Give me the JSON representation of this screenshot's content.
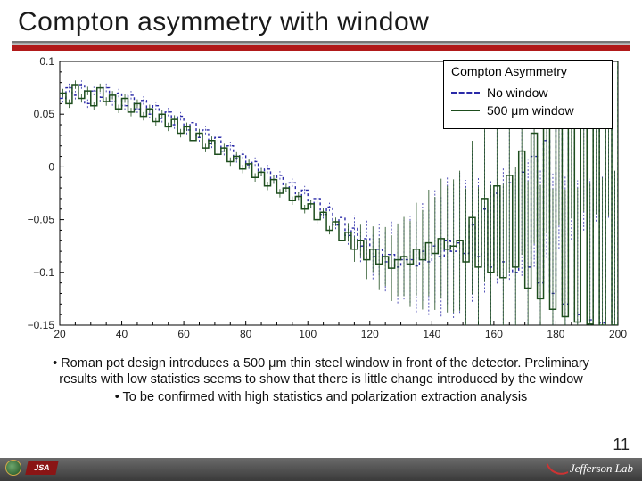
{
  "slide": {
    "title": "Compton asymmetry with window",
    "page_number": "11"
  },
  "chart": {
    "type": "line",
    "background_color": "#ffffff",
    "plot_border_color": "#000000",
    "grid": false,
    "xlim": [
      20,
      200
    ],
    "ylim": [
      -0.15,
      0.1
    ],
    "xtick_step": 20,
    "xtick_labels": [
      "20",
      "40",
      "60",
      "80",
      "100",
      "120",
      "140",
      "160",
      "180",
      "200"
    ],
    "ytick_step": 0.05,
    "ytick_labels": [
      "-0.15",
      "-0.1",
      "-0.05",
      "0",
      "0.05",
      "0.1"
    ],
    "tick_fontsize": 12,
    "legend": {
      "title": "Compton Asymmetry",
      "items": [
        {
          "label": "No window",
          "style": "dashed",
          "color": "#2a2aa8"
        },
        {
          "label": "500 μm window",
          "style": "solid",
          "color": "#1d4d1d"
        }
      ]
    },
    "series": [
      {
        "name": "no_window",
        "color": "#2a2aa8",
        "line_style": "dashed",
        "line_width": 1.4,
        "stroke_dasharray": "3,3",
        "x_start": 20,
        "x_step": 2,
        "n": 91,
        "y": [
          0.065,
          0.075,
          0.068,
          0.078,
          0.06,
          0.072,
          0.066,
          0.075,
          0.062,
          0.07,
          0.058,
          0.068,
          0.055,
          0.063,
          0.05,
          0.058,
          0.046,
          0.052,
          0.04,
          0.048,
          0.035,
          0.042,
          0.028,
          0.035,
          0.022,
          0.028,
          0.015,
          0.02,
          0.008,
          0.012,
          0.002,
          0.005,
          -0.005,
          -0.002,
          -0.012,
          -0.008,
          -0.02,
          -0.015,
          -0.028,
          -0.022,
          -0.035,
          -0.03,
          -0.045,
          -0.038,
          -0.055,
          -0.048,
          -0.065,
          -0.058,
          -0.075,
          -0.068,
          -0.085,
          -0.078,
          -0.09,
          -0.083,
          -0.095,
          -0.088,
          -0.088,
          -0.094,
          -0.08,
          -0.09,
          -0.075,
          -0.085,
          -0.07,
          -0.08,
          -0.072,
          -0.082,
          -0.055,
          -0.085,
          -0.04,
          -0.095,
          -0.025,
          -0.09,
          -0.015,
          -0.1,
          -0.005,
          -0.095,
          0.01,
          -0.11,
          0.025,
          -0.12,
          0.04,
          -0.13,
          0.055,
          -0.14,
          0.07,
          -0.145,
          0.085,
          -0.148,
          0.095,
          -0.15,
          0.098
        ]
      },
      {
        "name": "with_window",
        "color": "#1d4d1d",
        "line_style": "solid",
        "line_width": 1.5,
        "x_start": 20,
        "x_step": 2,
        "n": 91,
        "y": [
          0.07,
          0.06,
          0.078,
          0.065,
          0.072,
          0.058,
          0.075,
          0.062,
          0.068,
          0.055,
          0.065,
          0.052,
          0.06,
          0.048,
          0.055,
          0.043,
          0.05,
          0.038,
          0.045,
          0.032,
          0.038,
          0.025,
          0.032,
          0.018,
          0.025,
          0.012,
          0.018,
          0.005,
          0.01,
          -0.002,
          0.003,
          -0.01,
          -0.005,
          -0.018,
          -0.012,
          -0.025,
          -0.02,
          -0.032,
          -0.028,
          -0.04,
          -0.035,
          -0.05,
          -0.043,
          -0.06,
          -0.052,
          -0.07,
          -0.062,
          -0.078,
          -0.07,
          -0.088,
          -0.078,
          -0.092,
          -0.085,
          -0.096,
          -0.088,
          -0.085,
          -0.092,
          -0.078,
          -0.088,
          -0.072,
          -0.082,
          -0.068,
          -0.078,
          -0.075,
          -0.07,
          -0.09,
          -0.048,
          -0.095,
          -0.03,
          -0.1,
          -0.018,
          -0.105,
          -0.008,
          -0.095,
          0.015,
          -0.115,
          0.032,
          -0.125,
          0.048,
          -0.135,
          0.062,
          -0.142,
          0.075,
          -0.147,
          0.088,
          -0.149,
          0.092,
          -0.15,
          0.097,
          -0.15,
          0.099
        ]
      }
    ]
  },
  "bullets": [
    "Roman pot design introduces a 500 μm thin steel window in front of the detector. Preliminary results with low statistics seems to show that there is little change introduced by the window",
    "To be confirmed with high statistics and polarization extraction analysis"
  ],
  "footer": {
    "jsa_label": "JSA",
    "jlab_label": "Jefferson Lab"
  },
  "colors": {
    "title_rule": "#888888",
    "red_bar": "#b11a1a",
    "footer_bg": "#4a4a4a"
  }
}
